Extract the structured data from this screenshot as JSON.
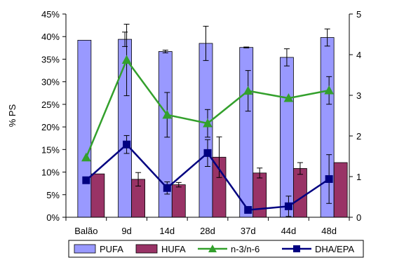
{
  "chart_data": {
    "type": "bar",
    "ylabel": "% PS",
    "categories": [
      "Balão",
      "9d",
      "14d",
      "28d",
      "37d",
      "44d",
      "48d"
    ],
    "y_left": {
      "min": 0,
      "max": 0.45,
      "step": 0.05,
      "tick_labels": [
        "0%",
        "5%",
        "10%",
        "15%",
        "20%",
        "25%",
        "30%",
        "35%",
        "40%",
        "45%"
      ]
    },
    "y_right": {
      "min": 0,
      "max": 5,
      "step": 1,
      "tick_labels": [
        "0",
        "1",
        "2",
        "3",
        "4",
        "5"
      ]
    },
    "series": [
      {
        "name": "PUFA",
        "kind": "bar",
        "axis": "left",
        "color": "#9999ff",
        "values": [
          0.392,
          0.394,
          0.367,
          0.385,
          0.376,
          0.354,
          0.398
        ],
        "errors": [
          0.0,
          0.016,
          0.003,
          0.038,
          0.001,
          0.019,
          0.019
        ]
      },
      {
        "name": "HUFA",
        "kind": "bar",
        "axis": "left",
        "color": "#993366",
        "values": [
          0.096,
          0.084,
          0.072,
          0.133,
          0.098,
          0.108,
          0.121
        ],
        "errors": [
          0.0,
          0.015,
          0.005,
          0.045,
          0.011,
          0.013,
          0.0
        ]
      },
      {
        "name": "n-3/n-6",
        "kind": "line",
        "axis": "right",
        "color": "#33a02c",
        "marker": "triangle",
        "values": [
          1.47,
          3.87,
          2.52,
          2.31,
          3.11,
          2.93,
          3.12
        ],
        "errors": [
          0.0,
          0.88,
          0.55,
          0.34,
          0.5,
          0.0,
          0.34
        ]
      },
      {
        "name": "DHA/EPA",
        "kind": "line",
        "axis": "right",
        "color": "#000080",
        "marker": "square",
        "values": [
          0.91,
          1.79,
          0.72,
          1.58,
          0.18,
          0.27,
          0.94
        ],
        "errors": [
          0.0,
          0.22,
          0.15,
          0.33,
          0.0,
          0.25,
          0.6
        ]
      }
    ],
    "legend_position": "bottom",
    "grid": false
  }
}
